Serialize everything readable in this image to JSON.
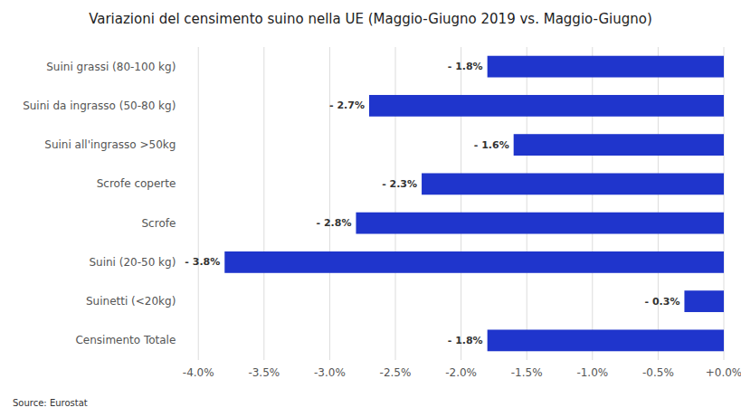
{
  "chart_data": {
    "type": "bar",
    "orientation": "horizontal",
    "title": "Variazioni del censimento suino nella UE (Maggio-Giugno 2019 vs. Maggio-Giugno)",
    "categories": [
      "Censimento Totale",
      "Suinetti (<20kg)",
      "Suini (20-50 kg)",
      "Scrofe",
      "Scrofe coperte",
      "Suini all'ingrasso >50kg",
      "Suini da ingrasso (50-80 kg)",
      "Suini grassi (80-100 kg)"
    ],
    "values": [
      -1.8,
      -0.3,
      -3.8,
      -2.8,
      -2.3,
      -1.6,
      -2.7,
      -1.8
    ],
    "value_labels": [
      "- 1.8%",
      "- 0.3%",
      "- 3.8%",
      "- 2.8%",
      "- 2.3%",
      "- 1.6%",
      "- 2.7%",
      "- 1.8%"
    ],
    "data_labels": true,
    "color": "#1F35CC",
    "xlim": [
      -4.0,
      0.0
    ],
    "xticks": [
      {
        "value": -4.0,
        "label": "-4.0%"
      },
      {
        "value": -3.5,
        "label": "-3.5%"
      },
      {
        "value": -3.0,
        "label": "-3.0%"
      },
      {
        "value": -2.5,
        "label": "-2.5%"
      },
      {
        "value": -2.0,
        "label": "-2.0%"
      },
      {
        "value": -1.5,
        "label": "-1.5%"
      },
      {
        "value": -1.0,
        "label": "-1.0%"
      },
      {
        "value": -0.5,
        "label": "-0.5%"
      },
      {
        "value": 0.0,
        "label": "+0.0%"
      }
    ],
    "grid": true,
    "annotations": [
      "Source: Eurostat"
    ]
  }
}
